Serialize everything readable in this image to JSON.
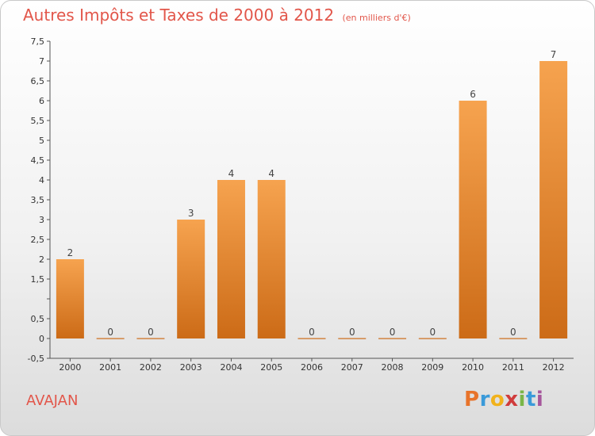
{
  "header": {
    "title": "Autres Impôts et Taxes de 2000 à 2012",
    "subtitle": "(en milliers d'€)"
  },
  "footer": {
    "town": "AVAJAN",
    "logo_letters": [
      "P",
      "r",
      "o",
      "x",
      "i",
      "t",
      "i"
    ],
    "logo_colors": [
      "#e8732a",
      "#3a9ad9",
      "#f1b21c",
      "#d03c3c",
      "#7ab648",
      "#3a9ad9",
      "#a6569c"
    ]
  },
  "chart_data": {
    "type": "bar",
    "title": "Autres Impôts et Taxes de 2000 à 2012",
    "subtitle": "(en milliers d'€)",
    "categories": [
      "2000",
      "2001",
      "2002",
      "2003",
      "2004",
      "2005",
      "2006",
      "2007",
      "2008",
      "2009",
      "2010",
      "2011",
      "2012"
    ],
    "values": [
      2,
      0,
      0,
      3,
      4,
      4,
      0,
      0,
      0,
      0,
      6,
      0,
      7
    ],
    "ylim": [
      -0.5,
      7.5
    ],
    "yticks": [
      -0.5,
      0,
      0.5,
      1,
      1.5,
      2,
      2.5,
      3,
      3.5,
      4,
      4.5,
      5,
      5.5,
      6,
      6.5,
      7,
      7.5
    ],
    "ytick_labels": [
      "-0,5",
      "0",
      "0,5",
      "",
      "1,5",
      "2",
      "2,5",
      "3",
      "3,5",
      "4",
      "4,5",
      "5",
      "5,5",
      "6",
      "6,5",
      "7",
      "7,5"
    ],
    "grid": false,
    "bar_color_top": "#f6a34f",
    "bar_color_bottom": "#cc6b17"
  }
}
